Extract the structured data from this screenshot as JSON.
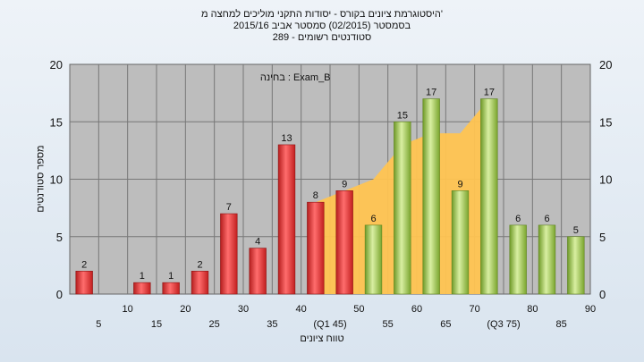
{
  "header": {
    "line1": "היסטוגרמת ציונים בקורס - יסודות התקני מוליכים למחצה מ'",
    "line2": "בסמסטר  (02/2015)  סמסטר אביב 2015/16",
    "line3": "סטודנטים רשומים - 289"
  },
  "chart_data": {
    "type": "bar",
    "title": "היסטוגרמת ציונים בקורס - יסודות התקני מוליכים למחצה מ'",
    "subtitle": "בסמסטר  (02/2015)  סמסטר אביב 2015/16 | סטודנטים רשומים - 289",
    "annotation": "בחינה : Exam_B",
    "xlabel": "טווח ציונים",
    "ylabel": "מספר סטודנטים",
    "ylim": [
      0,
      20
    ],
    "yticks": [
      0,
      5,
      10,
      15,
      20
    ],
    "categories": [
      "5",
      "10",
      "15",
      "20",
      "25",
      "30",
      "35",
      "40",
      "45",
      "50",
      "55",
      "60",
      "65",
      "70",
      "75",
      "80",
      "85",
      "90"
    ],
    "category_labels": [
      "5",
      "10",
      "15",
      "20",
      "25",
      "30",
      "35",
      "40",
      "(Q1 45)",
      "50",
      "55",
      "60",
      "65",
      "70",
      "(Q3 75)",
      "80",
      "85",
      "90"
    ],
    "values": [
      2,
      0,
      1,
      1,
      2,
      7,
      4,
      13,
      8,
      9,
      6,
      15,
      17,
      9,
      17,
      6,
      6,
      5
    ],
    "data_labels": [
      "2",
      "",
      "1",
      "1",
      "2",
      "7",
      "4",
      "13",
      "8",
      "9",
      "6",
      "15",
      "17",
      "9",
      "17",
      "6",
      "6",
      "5"
    ],
    "bar_colors": [
      "red",
      "red",
      "red",
      "red",
      "red",
      "red",
      "red",
      "red",
      "red",
      "red",
      "green",
      "green",
      "green",
      "green",
      "green",
      "green",
      "green",
      "green"
    ],
    "area_band": {
      "x": [
        "45",
        "50",
        "55",
        "60",
        "65",
        "70",
        "75"
      ],
      "values": [
        8,
        9,
        10,
        13,
        14,
        14,
        17
      ]
    },
    "colors": {
      "red": "#e83434",
      "green": "#9cc24a",
      "area": "#ffc451",
      "plot_bg": "#bdbdbd"
    },
    "grid": true
  }
}
